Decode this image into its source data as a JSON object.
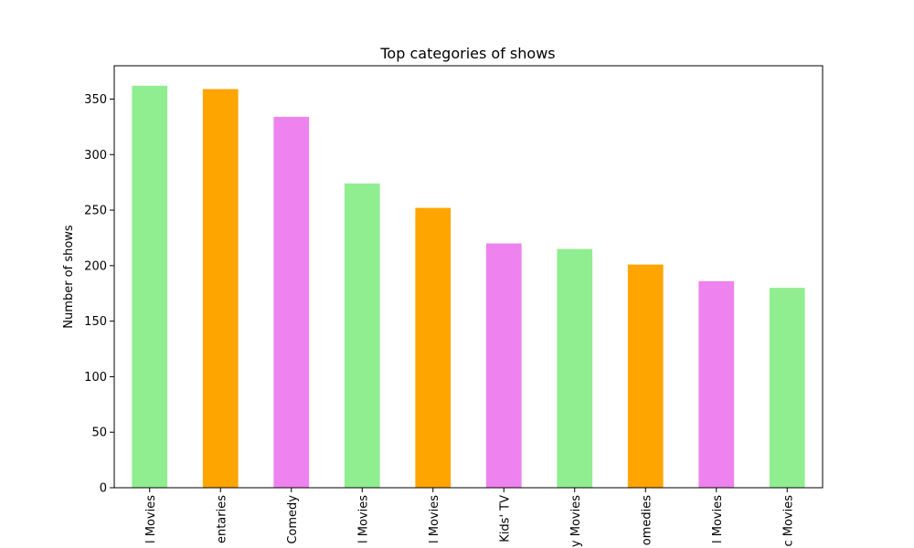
{
  "chart_data": {
    "type": "bar",
    "title": "Top categories of shows",
    "xlabel": "",
    "ylabel": "Number of shows",
    "ylim": [
      0,
      380
    ],
    "yticks": [
      0,
      50,
      100,
      150,
      200,
      250,
      300,
      350
    ],
    "grid": false,
    "categories": [
      "l Movies",
      "entaries",
      "Comedy",
      "l Movies",
      "l Movies",
      "Kids' TV",
      "y Movies",
      "omedies",
      "l Movies",
      "c Movies"
    ],
    "values": [
      362,
      359,
      334,
      274,
      252,
      220,
      215,
      201,
      186,
      180
    ],
    "bar_colors": [
      "#90ee90",
      "#ffa500",
      "#ee82ee",
      "#90ee90",
      "#ffa500",
      "#ee82ee",
      "#90ee90",
      "#ffa500",
      "#ee82ee",
      "#90ee90"
    ]
  }
}
